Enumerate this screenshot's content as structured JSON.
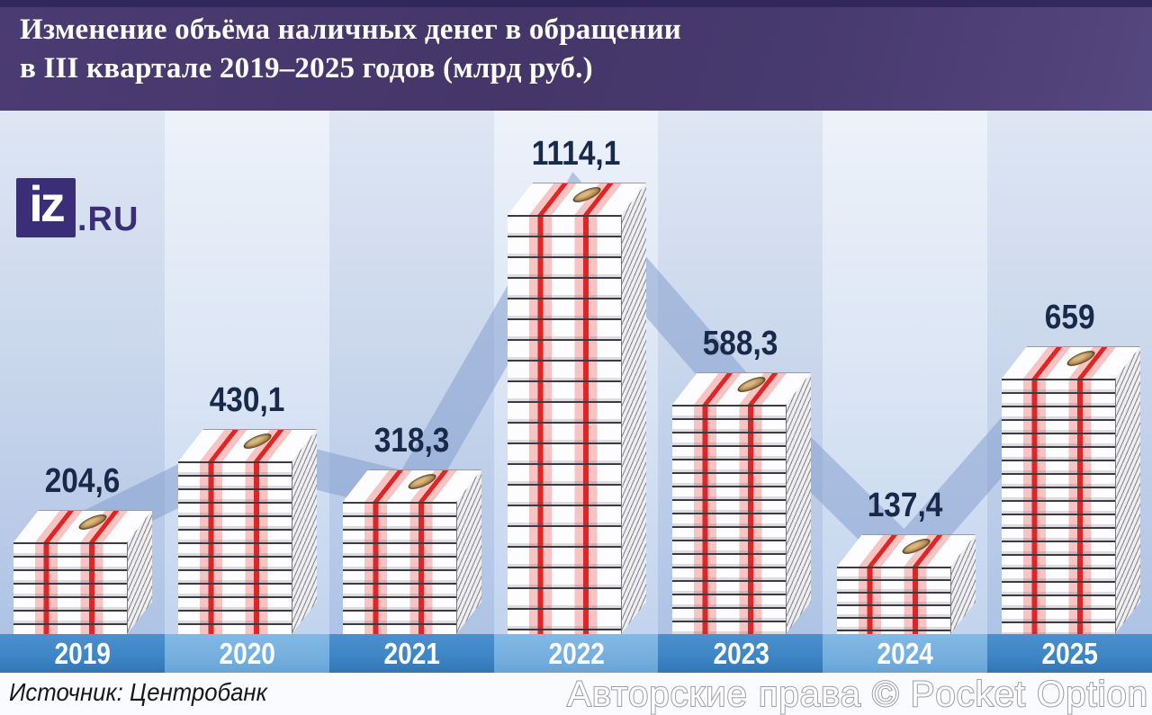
{
  "header": {
    "title_line1": "Изменение объёма наличных денег в обращении",
    "title_line2": "в III квартале 2019–2025 годов (млрд руб.)"
  },
  "logo": {
    "square_text": "iz",
    "suffix": ".RU"
  },
  "source": {
    "label": "Источник: Центробанк"
  },
  "watermark": {
    "text": "Авторские права © Pocket Option"
  },
  "chart_data": {
    "type": "bar",
    "title": "Изменение объёма наличных денег в обращении в III квартале 2019–2025 годов (млрд руб.)",
    "unit": "млрд руб.",
    "categories": [
      "2019",
      "2020",
      "2021",
      "2022",
      "2023",
      "2024",
      "2025"
    ],
    "values": [
      204.6,
      430.1,
      318.3,
      1114.1,
      588.3,
      137.4,
      659
    ],
    "value_labels": [
      "204,6",
      "430,1",
      "318,3",
      "1114,1",
      "588,3",
      "137,4",
      "659"
    ],
    "bar_style": "3d-banknote-stack",
    "trend_overlay": "thick translucent polyline connecting stack tops",
    "xlabel": "",
    "ylabel": "",
    "grid": false,
    "legend": "none",
    "source": "Центробанк"
  },
  "colors": {
    "header_bg": "#473a6c",
    "header_text": "#ffffff",
    "logo_purple": "#3b2e78",
    "axis_dark_band": "#3d85c4",
    "axis_light_band": "#74afdf",
    "year_text": "#ffffff",
    "value_text": "#18294a",
    "banknote_red_stripe": "#e32424",
    "banknote_pink_band": "#f7c3c3",
    "ribbon_blue": "#7d99cc",
    "bg_gradient_top": "#e2e9f5",
    "bg_gradient_bottom": "#b4c8e8",
    "source_text": "#171717"
  }
}
